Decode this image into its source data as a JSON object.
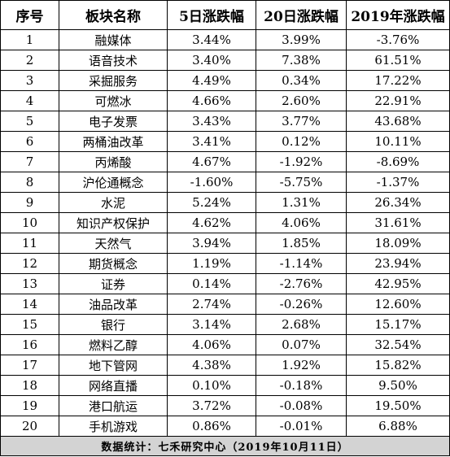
{
  "table": {
    "headers": [
      "序号",
      "板块名称",
      "5日涨跌幅",
      "20日涨跌幅",
      "2019年涨跌幅"
    ],
    "rows": [
      [
        "1",
        "融媒体",
        "3.44%",
        "3.99%",
        "-3.76%"
      ],
      [
        "2",
        "语音技术",
        "3.40%",
        "7.38%",
        "61.51%"
      ],
      [
        "3",
        "采掘服务",
        "4.49%",
        "0.34%",
        "17.22%"
      ],
      [
        "4",
        "可燃冰",
        "4.66%",
        "2.60%",
        "22.91%"
      ],
      [
        "5",
        "电子发票",
        "3.43%",
        "3.77%",
        "43.68%"
      ],
      [
        "6",
        "两桶油改革",
        "3.41%",
        "0.12%",
        "10.11%"
      ],
      [
        "7",
        "丙烯酸",
        "4.67%",
        "-1.92%",
        "-8.69%"
      ],
      [
        "8",
        "沪伦通概念",
        "-1.60%",
        "-5.75%",
        "-1.37%"
      ],
      [
        "9",
        "水泥",
        "5.24%",
        "1.31%",
        "26.34%"
      ],
      [
        "10",
        "知识产权保护",
        "4.62%",
        "4.06%",
        "31.61%"
      ],
      [
        "11",
        "天然气",
        "3.94%",
        "1.85%",
        "18.09%"
      ],
      [
        "12",
        "期货概念",
        "1.19%",
        "-1.14%",
        "23.94%"
      ],
      [
        "13",
        "证券",
        "0.14%",
        "-2.76%",
        "42.95%"
      ],
      [
        "14",
        "油品改革",
        "2.74%",
        "-0.26%",
        "12.60%"
      ],
      [
        "15",
        "银行",
        "3.14%",
        "2.68%",
        "15.17%"
      ],
      [
        "16",
        "燃料乙醇",
        "4.06%",
        "0.07%",
        "32.54%"
      ],
      [
        "17",
        "地下管网",
        "4.38%",
        "1.92%",
        "15.82%"
      ],
      [
        "18",
        "网络直播",
        "0.10%",
        "-0.18%",
        "9.50%"
      ],
      [
        "19",
        "港口航运",
        "3.72%",
        "-0.08%",
        "19.50%"
      ],
      [
        "20",
        "手机游戏",
        "0.86%",
        "-0.01%",
        "6.88%"
      ]
    ],
    "footer": "数据统计：七禾研究中心（2019年10月11日）"
  },
  "colors": {
    "border": "#000000",
    "footer_background": "#d3d3d3",
    "text": "#000000"
  }
}
